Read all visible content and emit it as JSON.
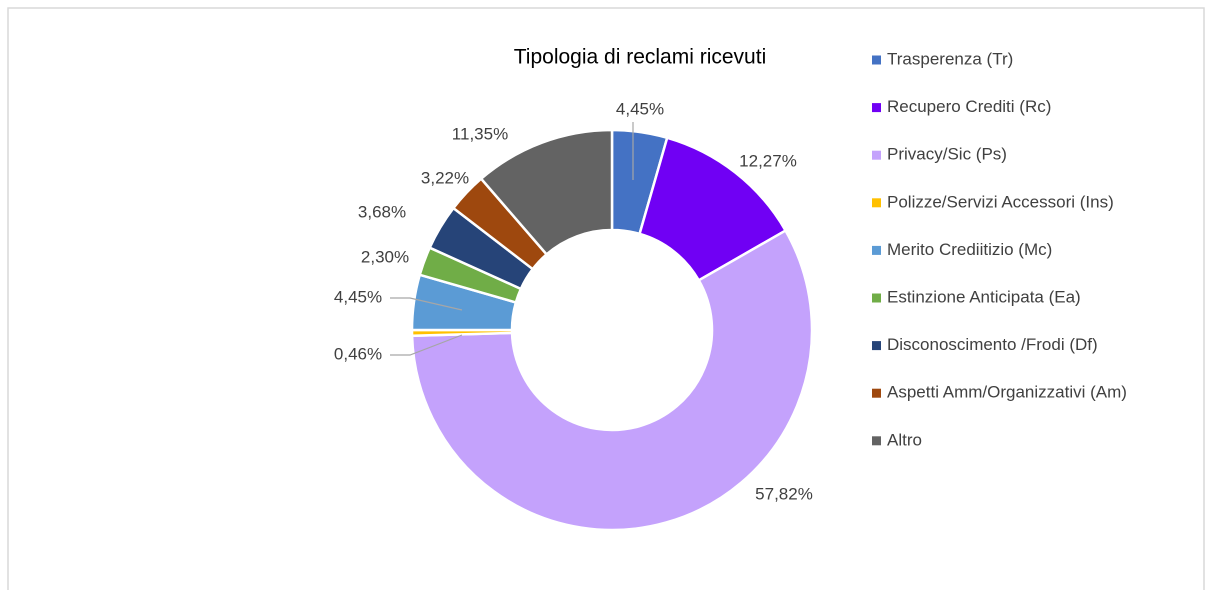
{
  "chart_data": {
    "type": "pie",
    "donut": true,
    "title": "Tipologia di reclami ricevuti",
    "categories": [
      "Trasperenza (Tr)",
      "Recupero Crediti (Rc)",
      "Privacy/Sic (Ps)",
      "Polizze/Servizi Accessori (Ins)",
      "Merito Crediitizio (Mc)",
      "Estinzione Anticipata (Ea)",
      "Disconoscimento /Frodi (Df)",
      "Aspetti Amm/Organizzativi (Am)",
      "Altro"
    ],
    "values": [
      4.45,
      12.27,
      57.82,
      0.46,
      4.45,
      2.3,
      3.68,
      3.22,
      11.35
    ],
    "value_labels": [
      "4,45%",
      "12,27%",
      "57,82%",
      "0,46%",
      "4,45%",
      "2,30%",
      "3,68%",
      "3,22%",
      "11,35%"
    ],
    "colors": [
      "#4472c4",
      "#7000f4",
      "#c4a2fc",
      "#ffc000",
      "#5b9bd5",
      "#70ad47",
      "#264478",
      "#9e480e",
      "#636363"
    ],
    "legend": "right"
  }
}
